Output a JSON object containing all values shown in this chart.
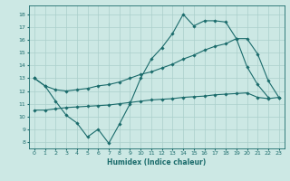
{
  "xlabel": "Humidex (Indice chaleur)",
  "bg_color": "#cce8e4",
  "grid_color": "#aacfcb",
  "line_color": "#1a6b6b",
  "x_ticks": [
    0,
    1,
    2,
    3,
    4,
    5,
    6,
    7,
    8,
    9,
    10,
    11,
    12,
    13,
    14,
    15,
    16,
    17,
    18,
    19,
    20,
    21,
    22,
    23
  ],
  "y_ticks": [
    8,
    9,
    10,
    11,
    12,
    13,
    14,
    15,
    16,
    17,
    18
  ],
  "ylim": [
    7.5,
    18.7
  ],
  "xlim": [
    -0.5,
    23.5
  ],
  "line1_x": [
    0,
    1,
    2,
    3,
    4,
    5,
    6,
    7,
    8,
    9,
    10,
    11,
    12,
    13,
    14,
    15,
    16,
    17,
    18,
    19,
    20,
    21,
    22
  ],
  "line1_y": [
    13.0,
    12.4,
    11.2,
    10.1,
    9.5,
    8.4,
    9.0,
    7.9,
    9.4,
    11.0,
    13.0,
    14.5,
    15.4,
    16.5,
    18.0,
    17.1,
    17.5,
    17.5,
    17.4,
    16.1,
    13.9,
    12.5,
    11.5
  ],
  "line2_x": [
    0,
    1,
    2,
    3,
    4,
    5,
    6,
    7,
    8,
    9,
    10,
    11,
    12,
    13,
    14,
    15,
    16,
    17,
    18,
    19,
    20,
    21,
    22,
    23
  ],
  "line2_y": [
    13.0,
    12.4,
    12.1,
    12.0,
    12.1,
    12.2,
    12.4,
    12.5,
    12.7,
    13.0,
    13.3,
    13.5,
    13.8,
    14.1,
    14.5,
    14.8,
    15.2,
    15.5,
    15.7,
    16.1,
    16.1,
    14.9,
    12.8,
    11.5
  ],
  "line3_x": [
    0,
    1,
    2,
    3,
    4,
    5,
    6,
    7,
    8,
    9,
    10,
    11,
    12,
    13,
    14,
    15,
    16,
    17,
    18,
    19,
    20,
    21,
    22,
    23
  ],
  "line3_y": [
    10.5,
    10.5,
    10.6,
    10.7,
    10.75,
    10.8,
    10.85,
    10.9,
    11.0,
    11.1,
    11.2,
    11.3,
    11.35,
    11.4,
    11.5,
    11.55,
    11.6,
    11.7,
    11.75,
    11.8,
    11.85,
    11.5,
    11.4,
    11.5
  ]
}
